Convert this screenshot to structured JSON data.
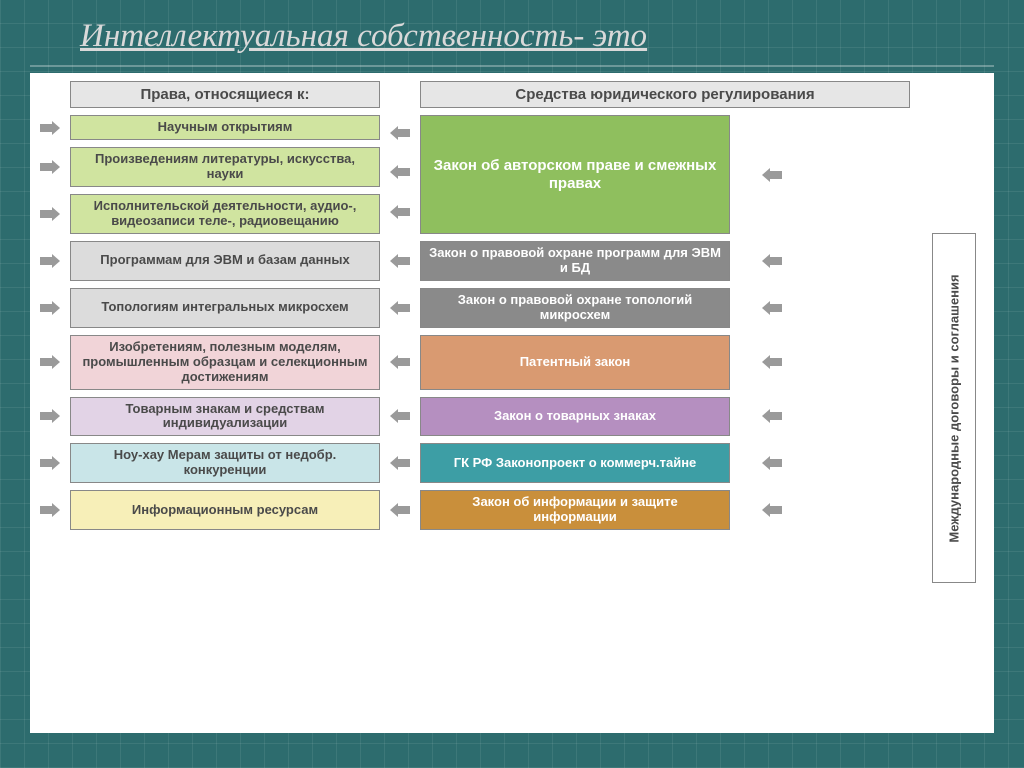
{
  "title": "Интеллектуальная собственность- это",
  "header_left": "Права, относящиеся к:",
  "header_right": "Средства юридического регулирования",
  "sidebar_vertical": "Международные договоры и соглашения",
  "colors": {
    "page_bg": "#2d6c6e",
    "panel_bg": "#ffffff",
    "arrow": "#9a9a9a",
    "text": "#4a4a4a",
    "header_bg": "#e6e6e6",
    "title_color": "#d9d9d9"
  },
  "rows": [
    {
      "left": "Научным открытиям",
      "left_bg": "#d0e4a0",
      "right": "Закон об авторском праве и смежных правах",
      "right_bg": "#8fbf5e",
      "right_text": "#ffffff",
      "right_span": 3
    },
    {
      "left": "Произведениям литературы, искусства, науки",
      "left_bg": "#d0e4a0"
    },
    {
      "left": "Исполнительской деятельности, аудио-, видеозаписи теле-, радиовещанию",
      "left_bg": "#d0e4a0"
    },
    {
      "left": "Программам для ЭВМ и базам данных",
      "left_bg": "#dcdcdc",
      "right": "Закон о правовой охране программ для ЭВМ и БД",
      "right_bg": "#8a8a8a",
      "right_text": "#ffffff"
    },
    {
      "left": "Топологиям интегральных микросхем",
      "left_bg": "#dcdcdc",
      "right": "Закон о правовой охране топологий микросхем",
      "right_bg": "#8a8a8a",
      "right_text": "#ffffff"
    },
    {
      "left": "Изобретениям, полезным моделям, промышленным образцам и селекционным достижениям",
      "left_bg": "#f1d4d8",
      "right": "Патентный закон",
      "right_bg": "#d99a71",
      "right_text": "#ffffff"
    },
    {
      "left": "Товарным знакам и средствам индивидуализации",
      "left_bg": "#e2d3e6",
      "right": "Закон о товарных знаках",
      "right_bg": "#b58fc0",
      "right_text": "#ffffff"
    },
    {
      "left": "Ноу-хау Мерам защиты от недобр. конкуренции",
      "left_bg": "#c9e5e8",
      "right": "ГК РФ Законопроект о коммерч.тайне",
      "right_bg": "#3d9ea5",
      "right_text": "#ffffff"
    },
    {
      "left": "Информационным ресурсам",
      "left_bg": "#f7efb8",
      "right": "Закон об информации и защите информации",
      "right_bg": "#c98f3b",
      "right_text": "#ffffff"
    }
  ]
}
